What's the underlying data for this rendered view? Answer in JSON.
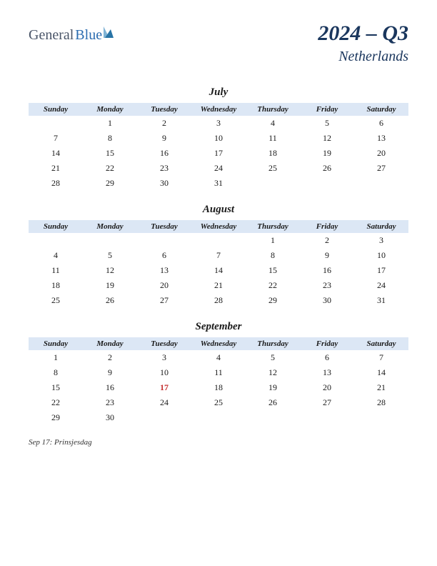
{
  "logo": {
    "text1": "General",
    "text2": "Blue",
    "color1": "#4a5568",
    "color2": "#2b6cb0",
    "icon_colors": [
      "#7fb3d5",
      "#2874a6"
    ]
  },
  "header": {
    "quarter": "2024 – Q3",
    "country": "Netherlands",
    "title_color": "#1a365d"
  },
  "styling": {
    "header_bg": "#dce7f5",
    "text_color": "#1a1a1a",
    "holiday_color": "#c53030",
    "page_bg": "#ffffff"
  },
  "day_headers": [
    "Sunday",
    "Monday",
    "Tuesday",
    "Wednesday",
    "Thursday",
    "Friday",
    "Saturday"
  ],
  "months": [
    {
      "name": "July",
      "weeks": [
        [
          "",
          "1",
          "2",
          "3",
          "4",
          "5",
          "6"
        ],
        [
          "7",
          "8",
          "9",
          "10",
          "11",
          "12",
          "13"
        ],
        [
          "14",
          "15",
          "16",
          "17",
          "18",
          "19",
          "20"
        ],
        [
          "21",
          "22",
          "23",
          "24",
          "25",
          "26",
          "27"
        ],
        [
          "28",
          "29",
          "30",
          "31",
          "",
          "",
          ""
        ]
      ],
      "holidays": []
    },
    {
      "name": "August",
      "weeks": [
        [
          "",
          "",
          "",
          "",
          "1",
          "2",
          "3"
        ],
        [
          "4",
          "5",
          "6",
          "7",
          "8",
          "9",
          "10"
        ],
        [
          "11",
          "12",
          "13",
          "14",
          "15",
          "16",
          "17"
        ],
        [
          "18",
          "19",
          "20",
          "21",
          "22",
          "23",
          "24"
        ],
        [
          "25",
          "26",
          "27",
          "28",
          "29",
          "30",
          "31"
        ]
      ],
      "holidays": []
    },
    {
      "name": "September",
      "weeks": [
        [
          "1",
          "2",
          "3",
          "4",
          "5",
          "6",
          "7"
        ],
        [
          "8",
          "9",
          "10",
          "11",
          "12",
          "13",
          "14"
        ],
        [
          "15",
          "16",
          "17",
          "18",
          "19",
          "20",
          "21"
        ],
        [
          "22",
          "23",
          "24",
          "25",
          "26",
          "27",
          "28"
        ],
        [
          "29",
          "30",
          "",
          "",
          "",
          "",
          ""
        ]
      ],
      "holidays": [
        "17"
      ]
    }
  ],
  "holiday_list": [
    "Sep 17: Prinsjesdag"
  ]
}
